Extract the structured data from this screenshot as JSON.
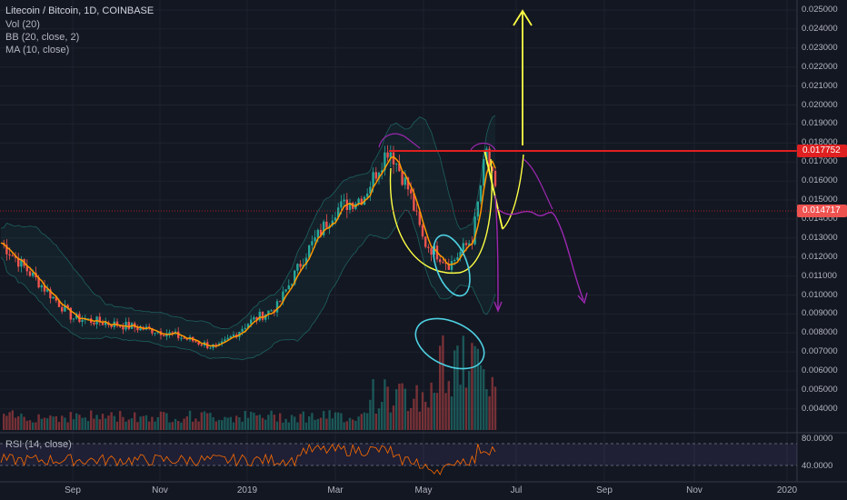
{
  "legend": {
    "symbol": "Litecoin / Bitcoin, 1D, COINBASE",
    "vol": "Vol (20)",
    "bb": "BB (20, close, 2)",
    "ma": "MA (10, close)"
  },
  "rsi": {
    "label": "RSI (14, close)",
    "axis_ticks": [
      "80.0000",
      "40.0000"
    ]
  },
  "price_axis": {
    "ticks": [
      "0.025000",
      "0.024000",
      "0.023000",
      "0.022000",
      "0.021000",
      "0.020000",
      "0.019000",
      "0.018000",
      "0.017000",
      "0.016000",
      "0.015000",
      "0.014000",
      "0.013000",
      "0.012000",
      "0.011000",
      "0.010000",
      "0.009000",
      "0.008000",
      "0.007000",
      "0.006000",
      "0.005000",
      "0.004000"
    ],
    "resistance_badge": "0.017752",
    "last_price_badge": "0.014717"
  },
  "time_axis": {
    "labels": [
      "Sep",
      "Nov",
      "2019",
      "Mar",
      "May",
      "Jul",
      "Sep",
      "Nov",
      "2020"
    ]
  },
  "colors": {
    "background": "#131722",
    "up": "#26a69a",
    "down": "#ef5350",
    "ma": "#ff9800",
    "resistance": "#e02020",
    "annotation_yellow": "#ffff44",
    "annotation_purple": "#9c27b0",
    "annotation_cyan": "#4dd0e1"
  },
  "chart_data": {
    "type": "candlestick",
    "pair": "LTC/BTC",
    "interval": "1D",
    "exchange": "COINBASE",
    "price_range": [
      0.0035,
      0.0255
    ],
    "resistance": 0.017752,
    "last_price": 0.014717,
    "key_points": [
      {
        "date": "2018-07",
        "close": 0.0128
      },
      {
        "date": "2018-09",
        "close": 0.0088
      },
      {
        "date": "2018-11",
        "close": 0.0081
      },
      {
        "date": "2018-12",
        "close": 0.0072
      },
      {
        "date": "2019-01",
        "close": 0.0085
      },
      {
        "date": "2019-02",
        "close": 0.0094
      },
      {
        "date": "2019-02-20",
        "close": 0.0123
      },
      {
        "date": "2019-03",
        "close": 0.0145
      },
      {
        "date": "2019-03-25",
        "close": 0.0152
      },
      {
        "date": "2019-04-01",
        "close": 0.0178
      },
      {
        "date": "2019-04-15",
        "close": 0.0155
      },
      {
        "date": "2019-05-01",
        "close": 0.0128
      },
      {
        "date": "2019-05-20",
        "close": 0.0116
      },
      {
        "date": "2019-06-05",
        "close": 0.013
      },
      {
        "date": "2019-06-15",
        "close": 0.0176
      },
      {
        "date": "2019-06-22",
        "close": 0.0147
      }
    ],
    "rsi_range": [
      20,
      90
    ]
  }
}
